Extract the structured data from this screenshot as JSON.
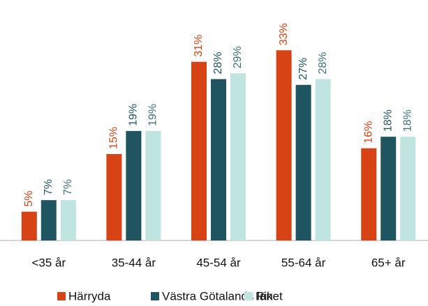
{
  "chart_data": {
    "type": "bar",
    "categories": [
      "<35 år",
      "35-44 år",
      "45-54 år",
      "55-64 år",
      "65+ år"
    ],
    "series": [
      {
        "name": "Härryda",
        "color": "#d84315",
        "label_color": "#d84315",
        "values": [
          5,
          15,
          31,
          33,
          16
        ],
        "value_labels": [
          "5%",
          "15%",
          "31%",
          "33%",
          "16%"
        ]
      },
      {
        "name": "Västra Götalands län",
        "color": "#1f5560",
        "label_color": "#1f5560",
        "values": [
          7,
          19,
          28,
          27,
          18
        ],
        "value_labels": [
          "7%",
          "19%",
          "28%",
          "27%",
          "18%"
        ]
      },
      {
        "name": "Riket",
        "color": "#c0e4df",
        "label_color": "#3f6f77",
        "values": [
          7,
          19,
          29,
          28,
          18
        ],
        "value_labels": [
          "7%",
          "19%",
          "29%",
          "28%",
          "18%"
        ]
      }
    ],
    "ylim": [
      0,
      35
    ]
  }
}
